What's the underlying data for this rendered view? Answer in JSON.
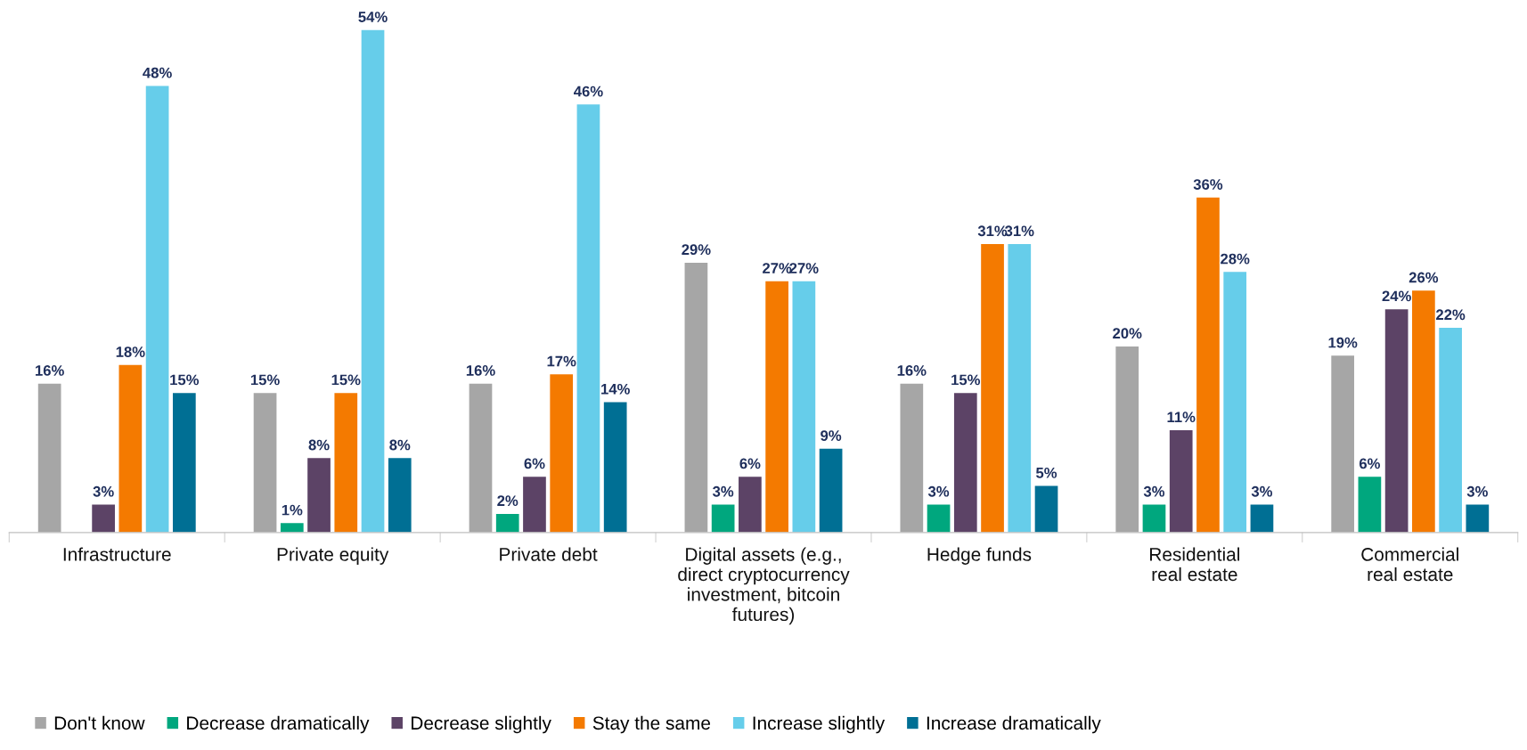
{
  "chart_data": {
    "type": "bar",
    "categories": [
      "Infrastructure",
      "Private equity",
      "Private debt",
      "Digital assets (e.g.,\ndirect cryptocurrency\ninvestment, bitcoin\nfutures)",
      "Hedge funds",
      "Residential\nreal estate",
      "Commercial\nreal estate"
    ],
    "series": [
      {
        "name": "Don't know",
        "color": "#a6a6a6",
        "values": [
          16,
          15,
          16,
          29,
          16,
          20,
          19
        ],
        "value_labels": [
          "16%",
          "15%",
          "16%",
          "29%",
          "16%",
          "20%",
          "19%"
        ]
      },
      {
        "name": "Decrease dramatically",
        "color": "#00a77e",
        "values": [
          null,
          1,
          2,
          3,
          3,
          3,
          6
        ],
        "value_labels": [
          null,
          "1%",
          "2%",
          "3%",
          "3%",
          "3%",
          "6%"
        ]
      },
      {
        "name": "Decrease slightly",
        "color": "#5c4366",
        "values": [
          3,
          8,
          6,
          6,
          15,
          11,
          24
        ],
        "value_labels": [
          "3%",
          "8%",
          "6%",
          "6%",
          "15%",
          "11%",
          "24%"
        ]
      },
      {
        "name": "Stay the same",
        "color": "#f47a00",
        "values": [
          18,
          15,
          17,
          27,
          31,
          36,
          26
        ],
        "value_labels": [
          "18%",
          "15%",
          "17%",
          "27%",
          "31%",
          "36%",
          "26%"
        ]
      },
      {
        "name": "Increase slightly",
        "color": "#66cdea",
        "values": [
          48,
          54,
          46,
          27,
          31,
          28,
          22
        ],
        "value_labels": [
          "48%",
          "54%",
          "46%",
          "27%",
          "31%",
          "28%",
          "22%"
        ]
      },
      {
        "name": "Increase dramatically",
        "color": "#006f94",
        "values": [
          15,
          8,
          14,
          9,
          5,
          3,
          3
        ],
        "value_labels": [
          "15%",
          "8%",
          "14%",
          "9%",
          "5%",
          "3%",
          "3%"
        ]
      }
    ],
    "legend": "bottom left",
    "grid": false
  }
}
